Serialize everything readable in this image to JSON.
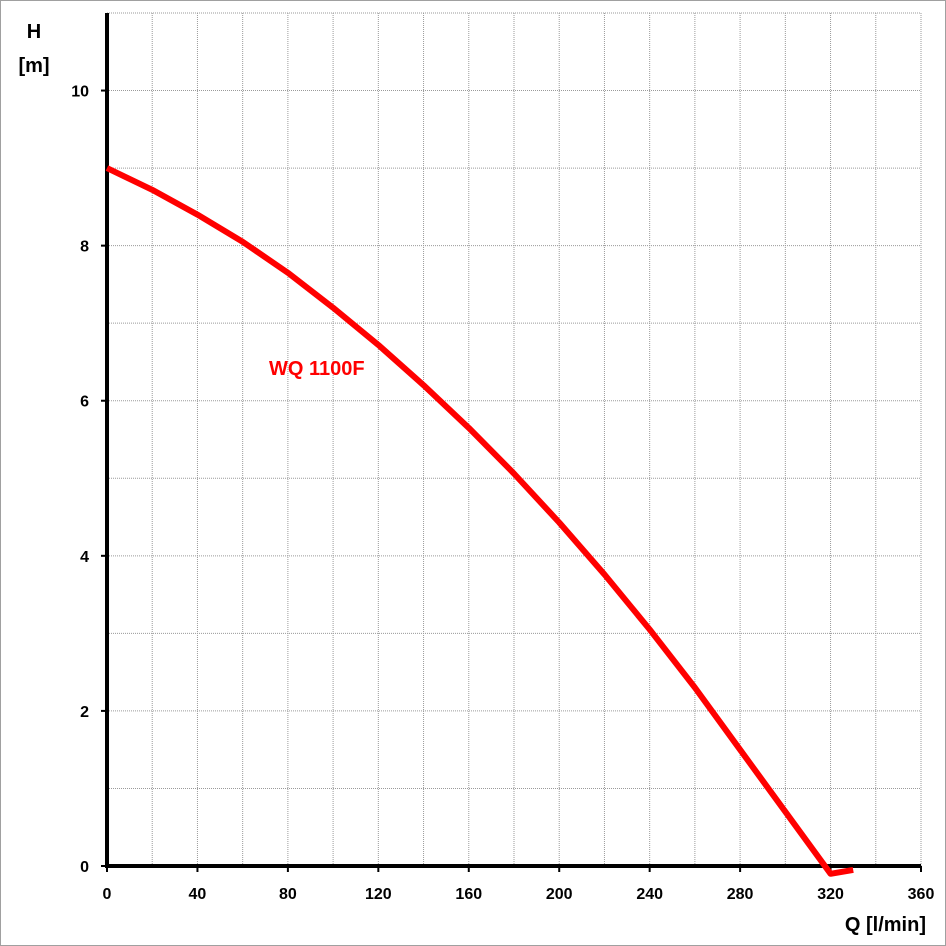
{
  "chart_data": {
    "type": "line",
    "xlabel": "Q [l/min]",
    "ylabel_line1": "H",
    "ylabel_line2": "[m]",
    "xlim": [
      0,
      360
    ],
    "ylim": [
      0,
      11
    ],
    "x_ticks": [
      0,
      40,
      80,
      120,
      160,
      200,
      240,
      280,
      320,
      360
    ],
    "y_ticks": [
      0,
      2,
      4,
      6,
      8,
      10
    ],
    "x_grid_step": 20,
    "y_grid_step": 1,
    "grid": true,
    "series": [
      {
        "name": "WQ 1100F",
        "color": "#ff0000",
        "x": [
          0,
          20,
          40,
          60,
          80,
          100,
          120,
          140,
          160,
          180,
          200,
          220,
          240,
          260,
          280,
          300,
          320,
          330
        ],
        "y": [
          9.0,
          8.72,
          8.4,
          8.05,
          7.65,
          7.2,
          6.72,
          6.2,
          5.65,
          5.06,
          4.43,
          3.76,
          3.05,
          2.3,
          1.5,
          0.7,
          -0.1,
          -0.05
        ]
      }
    ]
  }
}
